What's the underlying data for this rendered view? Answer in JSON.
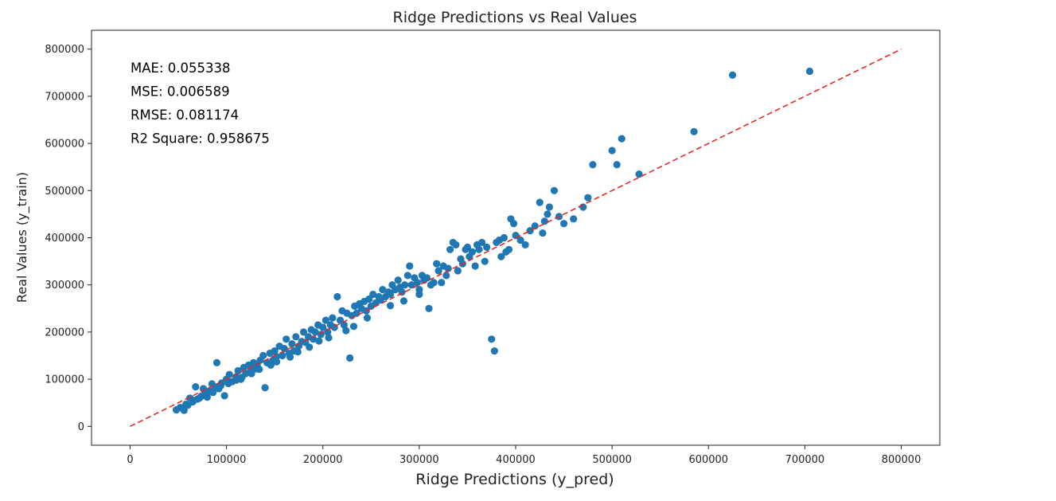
{
  "chart_data": {
    "type": "scatter",
    "title": "Ridge Predictions vs Real Values",
    "xlabel": "Ridge Predictions (y_pred)",
    "ylabel": "Real Values (y_train)",
    "xlim": [
      -40000,
      840000
    ],
    "ylim": [
      -40000,
      840000
    ],
    "x_ticks": [
      0,
      100000,
      200000,
      300000,
      400000,
      500000,
      600000,
      700000,
      800000
    ],
    "y_ticks": [
      0,
      100000,
      200000,
      300000,
      400000,
      500000,
      600000,
      700000,
      800000
    ],
    "x_tick_labels": [
      "0",
      "100000",
      "200000",
      "300000",
      "400000",
      "500000",
      "600000",
      "700000",
      "800000"
    ],
    "y_tick_labels": [
      "0",
      "100000",
      "200000",
      "300000",
      "400000",
      "500000",
      "600000",
      "700000",
      "800000"
    ],
    "grid": false,
    "annotations": [
      "MAE: 0.055338",
      "MSE: 0.006589",
      "RMSE: 0.081174",
      "R2 Square: 0.958675"
    ],
    "reference_line": {
      "style": "dashed",
      "color": "#e8281e",
      "from": [
        0,
        0
      ],
      "to": [
        800000,
        800000
      ]
    },
    "series": [
      {
        "color": "#1f77b4",
        "points": [
          [
            48000,
            35000
          ],
          [
            52000,
            40000
          ],
          [
            56000,
            34000
          ],
          [
            60000,
            45000
          ],
          [
            62000,
            60000
          ],
          [
            65000,
            52000
          ],
          [
            68000,
            84000
          ],
          [
            70000,
            58000
          ],
          [
            74000,
            64000
          ],
          [
            76000,
            80000
          ],
          [
            78000,
            70000
          ],
          [
            80000,
            62000
          ],
          [
            82000,
            75000
          ],
          [
            85000,
            90000
          ],
          [
            88000,
            84000
          ],
          [
            90000,
            135000
          ],
          [
            92000,
            80000
          ],
          [
            95000,
            92000
          ],
          [
            98000,
            65000
          ],
          [
            100000,
            100000
          ],
          [
            103000,
            110000
          ],
          [
            106000,
            95000
          ],
          [
            110000,
            105000
          ],
          [
            112000,
            118000
          ],
          [
            115000,
            100000
          ],
          [
            118000,
            125000
          ],
          [
            120000,
            112000
          ],
          [
            123000,
            130000
          ],
          [
            125000,
            118000
          ],
          [
            128000,
            135000
          ],
          [
            130000,
            122000
          ],
          [
            132000,
            128000
          ],
          [
            135000,
            140000
          ],
          [
            138000,
            150000
          ],
          [
            140000,
            82000
          ],
          [
            142000,
            135000
          ],
          [
            145000,
            155000
          ],
          [
            148000,
            140000
          ],
          [
            150000,
            160000
          ],
          [
            152000,
            148000
          ],
          [
            155000,
            170000
          ],
          [
            158000,
            150000
          ],
          [
            160000,
            165000
          ],
          [
            162000,
            185000
          ],
          [
            165000,
            155000
          ],
          [
            168000,
            175000
          ],
          [
            170000,
            160000
          ],
          [
            172000,
            190000
          ],
          [
            175000,
            170000
          ],
          [
            178000,
            180000
          ],
          [
            180000,
            200000
          ],
          [
            182000,
            178000
          ],
          [
            185000,
            190000
          ],
          [
            188000,
            205000
          ],
          [
            190000,
            185000
          ],
          [
            192000,
            200000
          ],
          [
            195000,
            215000
          ],
          [
            198000,
            195000
          ],
          [
            200000,
            210000
          ],
          [
            203000,
            225000
          ],
          [
            205000,
            200000
          ],
          [
            208000,
            215000
          ],
          [
            210000,
            230000
          ],
          [
            212000,
            210000
          ],
          [
            215000,
            275000
          ],
          [
            218000,
            225000
          ],
          [
            220000,
            245000
          ],
          [
            222000,
            215000
          ],
          [
            225000,
            240000
          ],
          [
            228000,
            145000
          ],
          [
            230000,
            235000
          ],
          [
            233000,
            255000
          ],
          [
            235000,
            240000
          ],
          [
            238000,
            260000
          ],
          [
            240000,
            250000
          ],
          [
            243000,
            265000
          ],
          [
            245000,
            245000
          ],
          [
            248000,
            270000
          ],
          [
            250000,
            255000
          ],
          [
            252000,
            280000
          ],
          [
            255000,
            262000
          ],
          [
            258000,
            275000
          ],
          [
            260000,
            268000
          ],
          [
            262000,
            290000
          ],
          [
            265000,
            275000
          ],
          [
            268000,
            285000
          ],
          [
            270000,
            280000
          ],
          [
            272000,
            300000
          ],
          [
            275000,
            290000
          ],
          [
            278000,
            310000
          ],
          [
            280000,
            295000
          ],
          [
            282000,
            285000
          ],
          [
            285000,
            300000
          ],
          [
            288000,
            320000
          ],
          [
            290000,
            340000
          ],
          [
            292000,
            300000
          ],
          [
            295000,
            315000
          ],
          [
            298000,
            305000
          ],
          [
            300000,
            290000
          ],
          [
            303000,
            320000
          ],
          [
            305000,
            310000
          ],
          [
            308000,
            315000
          ],
          [
            310000,
            250000
          ],
          [
            312000,
            300000
          ],
          [
            315000,
            305000
          ],
          [
            318000,
            345000
          ],
          [
            320000,
            330000
          ],
          [
            323000,
            305000
          ],
          [
            325000,
            340000
          ],
          [
            328000,
            320000
          ],
          [
            330000,
            335000
          ],
          [
            332000,
            375000
          ],
          [
            335000,
            390000
          ],
          [
            338000,
            385000
          ],
          [
            340000,
            330000
          ],
          [
            343000,
            355000
          ],
          [
            345000,
            345000
          ],
          [
            348000,
            375000
          ],
          [
            350000,
            380000
          ],
          [
            352000,
            360000
          ],
          [
            355000,
            370000
          ],
          [
            358000,
            340000
          ],
          [
            360000,
            385000
          ],
          [
            362000,
            375000
          ],
          [
            365000,
            390000
          ],
          [
            368000,
            350000
          ],
          [
            370000,
            380000
          ],
          [
            375000,
            185000
          ],
          [
            378000,
            160000
          ],
          [
            380000,
            390000
          ],
          [
            383000,
            395000
          ],
          [
            385000,
            360000
          ],
          [
            388000,
            400000
          ],
          [
            390000,
            370000
          ],
          [
            393000,
            375000
          ],
          [
            395000,
            440000
          ],
          [
            398000,
            430000
          ],
          [
            400000,
            405000
          ],
          [
            405000,
            395000
          ],
          [
            410000,
            385000
          ],
          [
            415000,
            415000
          ],
          [
            420000,
            425000
          ],
          [
            425000,
            475000
          ],
          [
            428000,
            410000
          ],
          [
            430000,
            435000
          ],
          [
            433000,
            450000
          ],
          [
            435000,
            465000
          ],
          [
            440000,
            500000
          ],
          [
            445000,
            445000
          ],
          [
            450000,
            430000
          ],
          [
            460000,
            440000
          ],
          [
            470000,
            465000
          ],
          [
            475000,
            485000
          ],
          [
            480000,
            555000
          ],
          [
            500000,
            585000
          ],
          [
            505000,
            555000
          ],
          [
            510000,
            610000
          ],
          [
            528000,
            535000
          ],
          [
            585000,
            625000
          ],
          [
            625000,
            745000
          ],
          [
            705000,
            753000
          ],
          [
            270000,
            256000
          ],
          [
            246000,
            230000
          ],
          [
            224000,
            203000
          ],
          [
            196000,
            181000
          ],
          [
            174000,
            158000
          ],
          [
            152000,
            137000
          ],
          [
            134000,
            121000
          ],
          [
            116000,
            104000
          ],
          [
            102000,
            91000
          ],
          [
            86000,
            72000
          ],
          [
            72000,
            60000
          ],
          [
            58000,
            47000
          ],
          [
            300000,
            280000
          ],
          [
            284000,
            266000
          ],
          [
            232000,
            212000
          ],
          [
            206000,
            188000
          ],
          [
            186000,
            168000
          ],
          [
            166000,
            147000
          ],
          [
            146000,
            130000
          ],
          [
            126000,
            112000
          ],
          [
            110000,
            98000
          ],
          [
            94000,
            86000
          ],
          [
            80000,
            71000
          ],
          [
            66000,
            55000
          ]
        ]
      }
    ]
  }
}
